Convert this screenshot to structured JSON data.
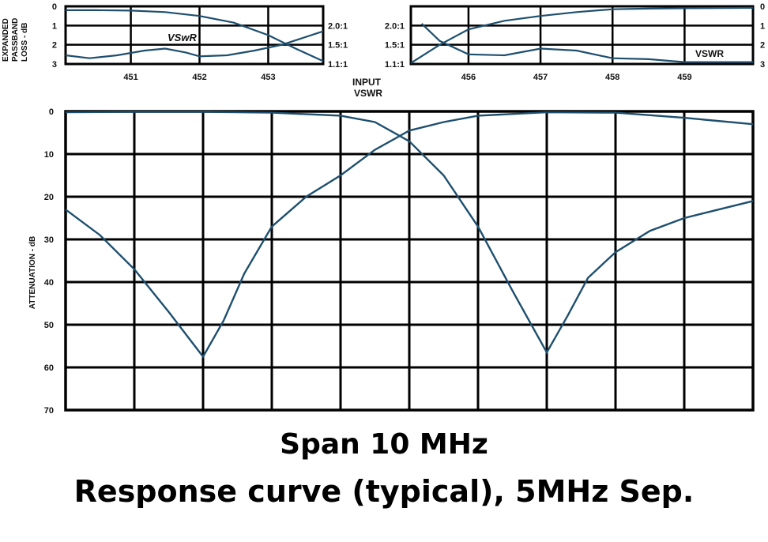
{
  "caption": {
    "line1": "Span 10 MHz",
    "line2": "Response curve (typical), 5MHz Sep."
  },
  "colors": {
    "grid": "#000000",
    "curve": "#1e4f6e",
    "vswr_label": "#1f5a8a"
  },
  "chart_data": [
    {
      "type": "line",
      "id": "left-passband",
      "ylabel": "EXPANDED PASSBAND LOSS - dB",
      "ylim": [
        0,
        3
      ],
      "y_ticks": [
        "0",
        "1",
        "2",
        "3"
      ],
      "x_ticks": [
        "451",
        "452",
        "453"
      ],
      "xlim": [
        450.05,
        453.8
      ],
      "right_axis_ticks": [
        "2.0:1",
        "1.5:1",
        "1.1:1"
      ],
      "grid": true,
      "annotations": [
        "VSwR"
      ],
      "series": [
        {
          "role": "passband-loss",
          "x": [
            450.05,
            450.5,
            451,
            451.5,
            452,
            452.5,
            453,
            453.4,
            453.8
          ],
          "y": [
            0.2,
            0.2,
            0.22,
            0.3,
            0.5,
            0.85,
            1.5,
            2.2,
            2.85
          ]
        },
        {
          "role": "vswr",
          "name": "VSwR",
          "x": [
            450.05,
            450.4,
            450.8,
            451.2,
            451.5,
            451.8,
            452,
            452.4,
            452.8,
            453.2,
            453.8
          ],
          "y": [
            2.55,
            2.7,
            2.55,
            2.3,
            2.2,
            2.4,
            2.6,
            2.55,
            2.3,
            2.0,
            1.3
          ]
        }
      ]
    },
    {
      "type": "line",
      "id": "right-passband",
      "ylabel": "",
      "ylim": [
        0,
        3
      ],
      "y_ticks": [
        "0",
        "1",
        "2",
        "3"
      ],
      "x_ticks": [
        "456",
        "457",
        "458",
        "459"
      ],
      "xlim": [
        455.2,
        459.95
      ],
      "left_axis_ticks": [
        "2.0:1",
        "1.5:1",
        "1.1:1"
      ],
      "grid": true,
      "annotations": [
        "VSWR"
      ],
      "series": [
        {
          "role": "passband-loss",
          "x": [
            455.2,
            455.6,
            456,
            456.5,
            457,
            457.5,
            458,
            458.5,
            459,
            459.95
          ],
          "y": [
            2.95,
            2.0,
            1.2,
            0.75,
            0.5,
            0.3,
            0.15,
            0.12,
            0.1,
            0.08
          ]
        },
        {
          "role": "vswr",
          "name": "VSWR",
          "x": [
            455.35,
            455.6,
            456,
            456.5,
            457,
            457.5,
            458,
            458.5,
            459,
            459.95
          ],
          "y": [
            0.9,
            1.8,
            2.5,
            2.55,
            2.2,
            2.3,
            2.7,
            2.75,
            2.9,
            2.9
          ]
        }
      ]
    },
    {
      "type": "line",
      "id": "attenuation",
      "ylabel": "ATTENUATION - dB",
      "ylim": [
        0,
        70
      ],
      "y_ticks": [
        "0",
        "10",
        "20",
        "30",
        "40",
        "50",
        "60",
        "70"
      ],
      "xlim": [
        450,
        460
      ],
      "grid": true,
      "series": [
        {
          "role": "channel-1-response",
          "x": [
            450,
            450.5,
            451,
            451.5,
            452,
            452.3,
            452.6,
            453,
            453.5,
            454,
            454.5,
            455,
            455.5,
            456,
            457,
            458,
            459,
            460
          ],
          "y": [
            23,
            29,
            37,
            47,
            57.5,
            49,
            38,
            27,
            20,
            15,
            9,
            4.5,
            2.5,
            1,
            0.2,
            0.3,
            1.5,
            3
          ]
        },
        {
          "role": "channel-2-response",
          "x": [
            450,
            451,
            452,
            453,
            454,
            454.5,
            455,
            455.5,
            456,
            456.5,
            457,
            457.3,
            457.6,
            458,
            458.5,
            459,
            459.5,
            460
          ],
          "y": [
            0.2,
            0.1,
            0.1,
            0.3,
            1.0,
            2.5,
            7,
            15,
            27,
            42,
            56.5,
            48,
            39,
            33,
            28,
            25,
            23,
            21
          ]
        }
      ]
    }
  ]
}
